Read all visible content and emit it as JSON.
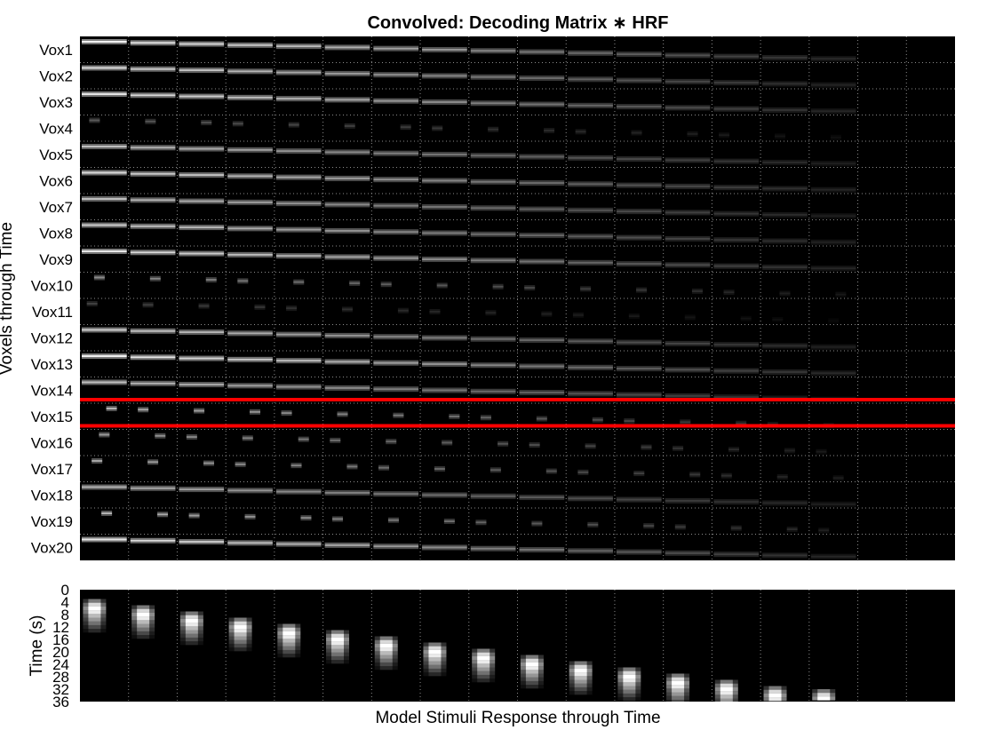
{
  "chart_data": [
    {
      "type": "heatmap",
      "title": "Convolved: Decoding Matrix ∗ HRF",
      "ylabel": "Voxels through Time",
      "rows": [
        "Vox1",
        "Vox2",
        "Vox3",
        "Vox4",
        "Vox5",
        "Vox6",
        "Vox7",
        "Vox8",
        "Vox9",
        "Vox10",
        "Vox11",
        "Vox12",
        "Vox13",
        "Vox14",
        "Vox15",
        "Vox16",
        "Vox17",
        "Vox18",
        "Vox19",
        "Vox20"
      ],
      "columns": 18,
      "colormap": "gray",
      "grid": "dotted",
      "highlighted_row": "Vox15",
      "highlight_color": "#ff0000",
      "voxel_intensity": [
        0.95,
        0.85,
        0.9,
        0.35,
        0.75,
        0.85,
        0.75,
        0.8,
        0.9,
        0.55,
        0.25,
        0.8,
        0.95,
        0.75,
        0.7,
        0.6,
        0.65,
        0.7,
        0.7,
        0.9
      ],
      "voxel_pattern": [
        "line",
        "line",
        "line",
        "dot",
        "line",
        "line",
        "line",
        "line",
        "line",
        "dot",
        "dot",
        "line",
        "line",
        "line",
        "dot",
        "dot",
        "dot",
        "line",
        "dot",
        "line"
      ]
    },
    {
      "type": "heatmap",
      "xlabel": "Model Stimuli Response through Time",
      "ylabel": "Time (s)",
      "y_ticks": [
        "0",
        "4",
        "8",
        "12",
        "16",
        "20",
        "24",
        "28",
        "32",
        "36"
      ],
      "ylim": [
        0,
        36
      ],
      "columns": 18,
      "colormap": "gray",
      "grid": "dotted",
      "hrf_peak_time": [
        6,
        8,
        10,
        12,
        14,
        16,
        18,
        20,
        22,
        24,
        26,
        28,
        30,
        32,
        34,
        35,
        null,
        null
      ]
    }
  ],
  "colors": {
    "background": "#000000",
    "highlight": "#ff0000",
    "grid": "#8c8c8c"
  }
}
